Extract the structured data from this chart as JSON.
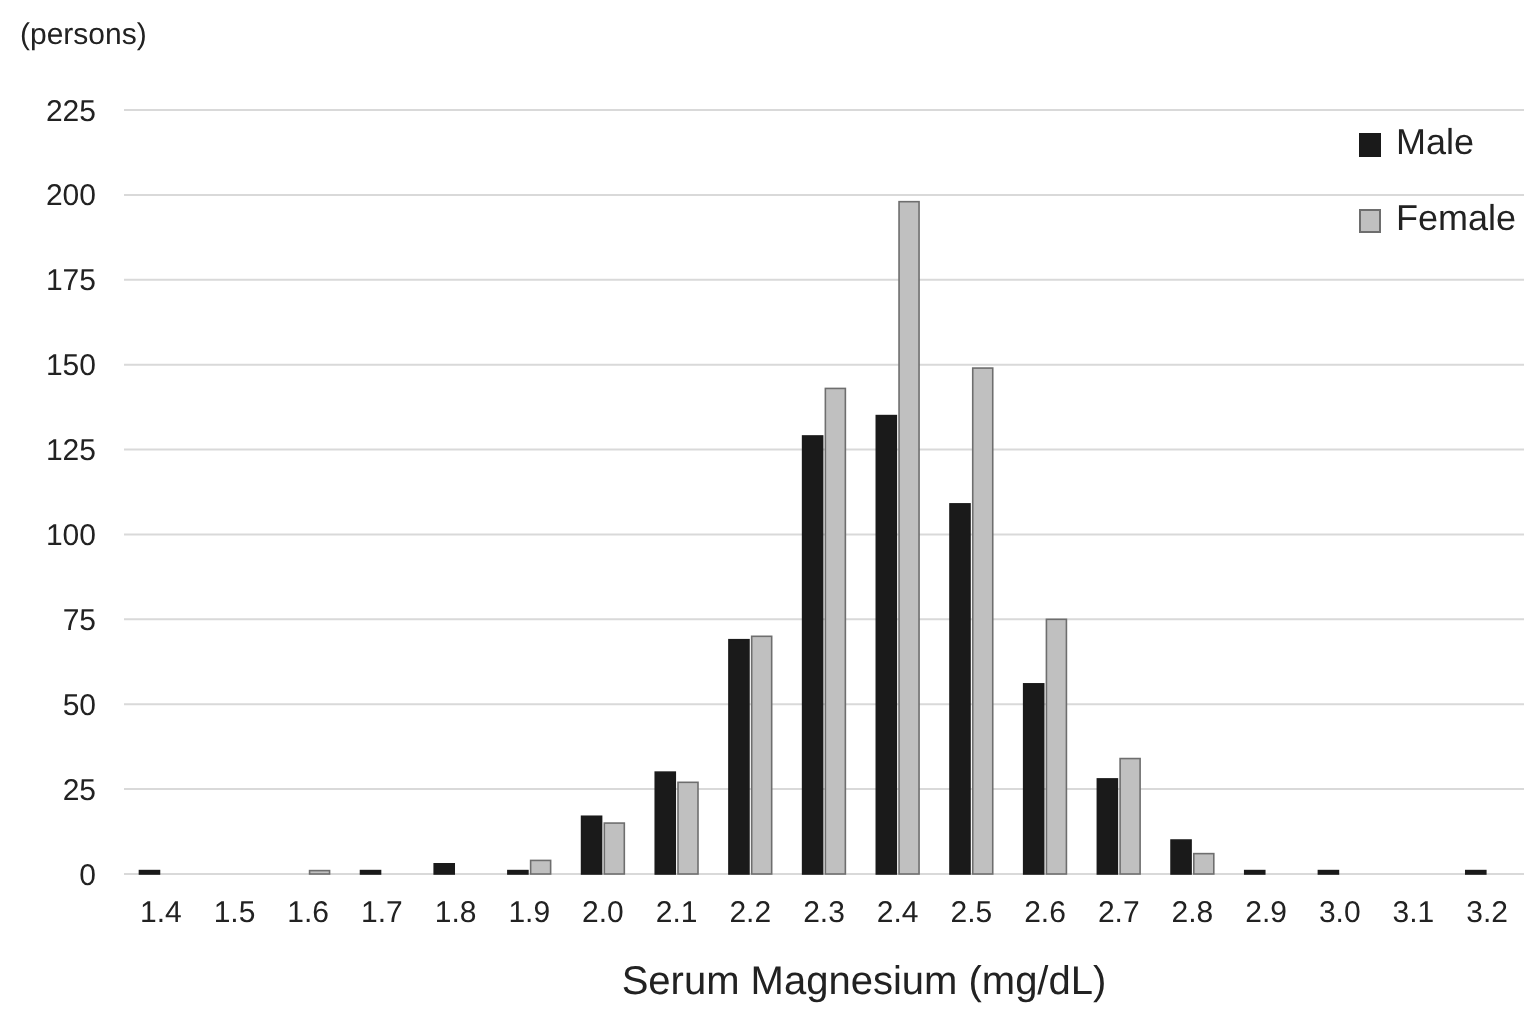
{
  "chart_data": {
    "type": "bar",
    "ylabel": "(persons)",
    "xlabel": "Serum Magnesium (mg/dL)",
    "categories": [
      "1.4",
      "1.5",
      "1.6",
      "1.7",
      "1.8",
      "1.9",
      "2.0",
      "2.1",
      "2.2",
      "2.3",
      "2.4",
      "2.5",
      "2.6",
      "2.7",
      "2.8",
      "2.9",
      "3.0",
      "3.1",
      "3.2"
    ],
    "series": [
      {
        "name": "Male",
        "color": "#1a1a1a",
        "values": [
          1,
          0,
          0,
          1,
          3,
          1,
          17,
          30,
          69,
          129,
          135,
          109,
          56,
          28,
          10,
          1,
          1,
          0,
          1
        ]
      },
      {
        "name": "Female",
        "color": "#c0c0c0",
        "values": [
          0,
          0,
          1,
          0,
          0,
          4,
          15,
          27,
          70,
          143,
          198,
          149,
          75,
          34,
          6,
          0,
          0,
          0,
          0
        ]
      }
    ],
    "ylim": [
      0,
      225
    ],
    "yticks": [
      0,
      25,
      50,
      75,
      100,
      125,
      150,
      175,
      200,
      225
    ],
    "grid": "y",
    "legend": "top right"
  }
}
